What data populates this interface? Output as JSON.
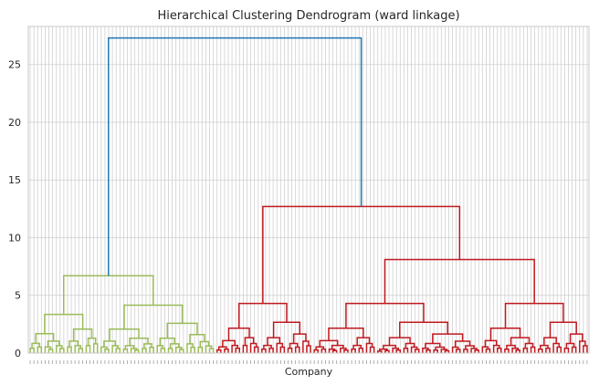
{
  "chart_data": {
    "type": "dendrogram",
    "title": "Hierarchical Clustering Dendrogram (ward linkage)",
    "xlabel": "Company",
    "ylabel": "",
    "ylim": [
      0,
      28.3
    ],
    "yticks": [
      0,
      5,
      10,
      15,
      20,
      25
    ],
    "leaf_count": 150,
    "grid": true,
    "colors": {
      "root": "#1f77b4",
      "cluster_green": "#9bbb59",
      "cluster_red": "#c0191f",
      "grid": "#cfcfcf",
      "spine": "#c8c8c8"
    },
    "merges": [
      {
        "height": 27.3,
        "color": "root"
      },
      {
        "height": 12.7,
        "color": "cluster_red"
      },
      {
        "height": 8.1,
        "color": "cluster_red"
      },
      {
        "height": 6.7,
        "color": "cluster_green"
      },
      {
        "height": 4.3,
        "color": "cluster_red"
      },
      {
        "height": 4.3,
        "color": "cluster_red"
      },
      {
        "height": 4.1,
        "color": "cluster_green"
      },
      {
        "height": 3.9,
        "color": "cluster_red"
      },
      {
        "height": 3.9,
        "color": "cluster_red"
      }
    ]
  }
}
